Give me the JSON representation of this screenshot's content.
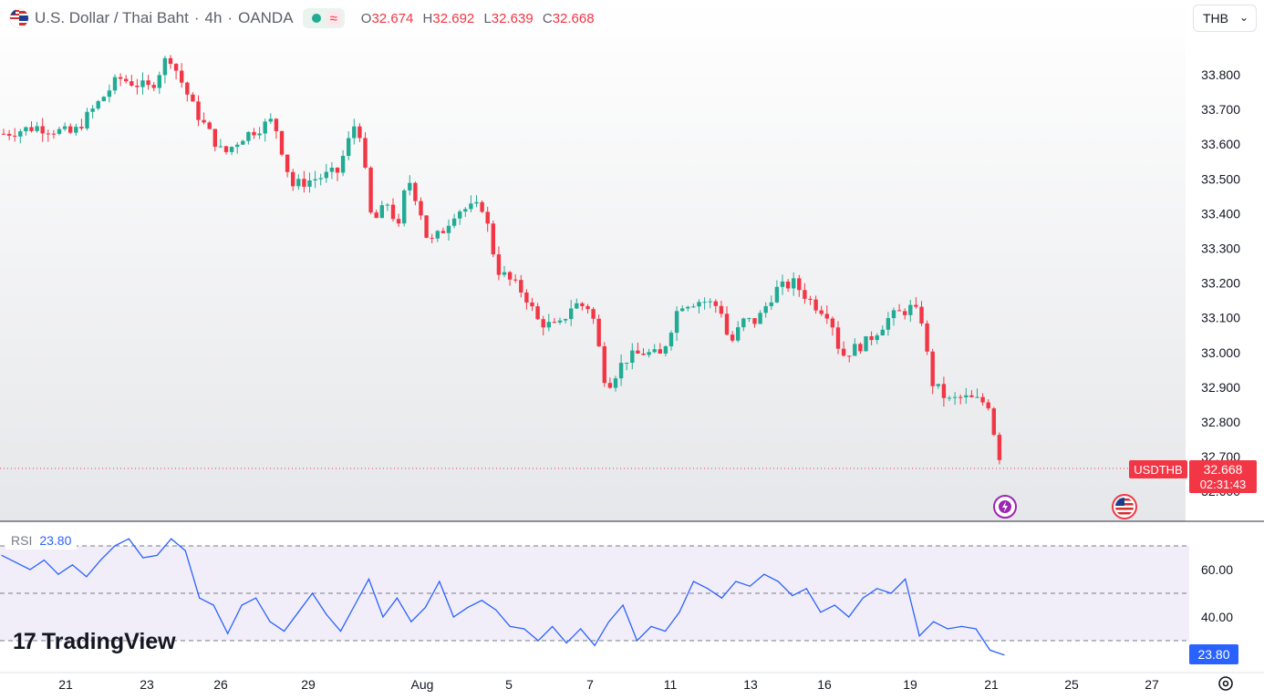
{
  "header": {
    "symbol_title": "U.S. Dollar / Thai Baht",
    "interval": "4h",
    "source": "OANDA",
    "open_label": "O",
    "open": "32.674",
    "high_label": "H",
    "high": "32.692",
    "low_label": "L",
    "low": "32.639",
    "close_label": "C",
    "close": "32.668"
  },
  "currency_selector": {
    "value": "THB"
  },
  "price_tag": {
    "symbol": "USDTHB",
    "price": "32.668",
    "countdown": "02:31:43"
  },
  "rsi_tag": {
    "label": "RSI",
    "value": "23.80"
  },
  "brand": {
    "name": "TradingView"
  },
  "colors": {
    "up": "#22ab94",
    "down": "#f23645",
    "rsi": "#2962ff",
    "rsi_band": "#7e57c2"
  },
  "chart_data": [
    {
      "type": "candlestick",
      "title": "",
      "ylim": [
        32.59,
        33.93
      ],
      "y_ticks": [
        "33.800",
        "33.700",
        "33.600",
        "33.500",
        "33.400",
        "33.300",
        "33.200",
        "33.100",
        "33.000",
        "32.900",
        "32.800",
        "32.700",
        "32.600"
      ],
      "x_ticks": [
        "21",
        "23",
        "26",
        "29",
        "Aug",
        "5",
        "7",
        "11",
        "13",
        "16",
        "19",
        "21",
        "25",
        "27"
      ],
      "last_price": 32.668
    },
    {
      "type": "line",
      "series": [
        {
          "name": "RSI",
          "values": [
            66,
            63,
            60,
            64,
            58,
            62,
            57,
            64,
            70,
            73,
            65,
            66,
            73,
            68,
            48,
            45,
            33,
            45,
            48,
            38,
            34,
            42,
            50,
            41,
            34,
            45,
            56,
            40,
            48,
            38,
            44,
            55,
            40,
            44,
            47,
            43,
            36,
            35,
            30,
            36,
            29,
            35,
            28,
            38,
            45,
            30,
            36,
            34,
            42,
            55,
            52,
            48,
            55,
            53,
            58,
            55,
            49,
            52,
            42,
            45,
            40,
            48,
            52,
            50,
            56,
            32,
            38,
            35,
            36,
            35,
            26,
            24
          ]
        }
      ],
      "ylim": [
        15,
        78
      ],
      "y_ticks": [
        "60.00",
        "40.00"
      ],
      "band": [
        30,
        70
      ],
      "midline": 50,
      "last_value": 23.8
    }
  ]
}
